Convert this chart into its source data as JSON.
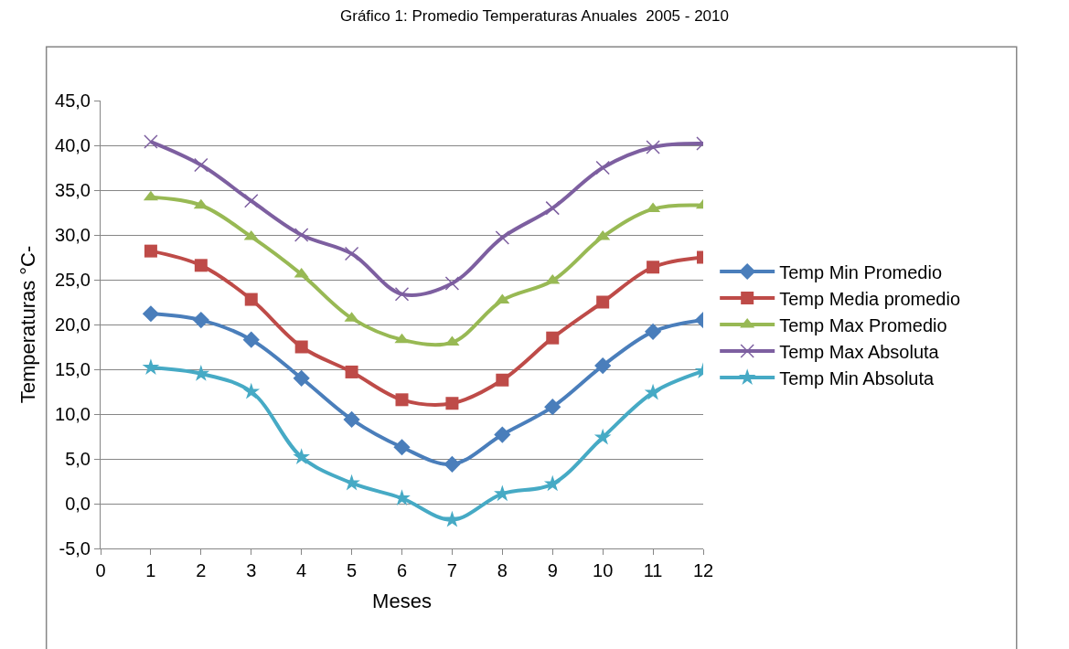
{
  "chart_data": {
    "type": "line",
    "title": "Gráfico 1: Promedio Temperaturas Anuales  2005 - 2010",
    "xlabel": "Meses",
    "ylabel": "Temperaturas °C-",
    "x": [
      1,
      2,
      3,
      4,
      5,
      6,
      7,
      8,
      9,
      10,
      11,
      12
    ],
    "xlim": [
      0,
      12
    ],
    "xticks": [
      0,
      1,
      2,
      3,
      4,
      5,
      6,
      7,
      8,
      9,
      10,
      11,
      12
    ],
    "ylim": [
      -5,
      45
    ],
    "yticks": [
      {
        "value": -5,
        "label": "-5,0"
      },
      {
        "value": 0,
        "label": "0,0"
      },
      {
        "value": 5,
        "label": "5,0"
      },
      {
        "value": 10,
        "label": "10,0"
      },
      {
        "value": 15,
        "label": "15,0"
      },
      {
        "value": 20,
        "label": "20,0"
      },
      {
        "value": 25,
        "label": "25,0"
      },
      {
        "value": 30,
        "label": "30,0"
      },
      {
        "value": 35,
        "label": "35,0"
      },
      {
        "value": 40,
        "label": "40,0"
      },
      {
        "value": 45,
        "label": "45,0"
      }
    ],
    "grid": "y",
    "legend": "right",
    "line_style": "solid",
    "series": [
      {
        "name": "Temp Min Promedio",
        "color": "#4a7ebb",
        "marker": "diamond",
        "values": [
          21.2,
          20.5,
          18.3,
          14.0,
          9.4,
          6.3,
          4.4,
          7.7,
          10.8,
          15.4,
          19.2,
          20.5
        ]
      },
      {
        "name": "Temp Media promedio",
        "color": "#be4b48",
        "marker": "square",
        "values": [
          28.2,
          26.6,
          22.8,
          17.5,
          14.7,
          11.6,
          11.2,
          13.8,
          18.5,
          22.5,
          26.4,
          27.5
        ]
      },
      {
        "name": "Temp Max Promedio",
        "color": "#98b954",
        "marker": "triangle",
        "values": [
          34.2,
          33.3,
          29.8,
          25.6,
          20.7,
          18.3,
          18.0,
          22.7,
          24.9,
          29.8,
          32.9,
          33.3
        ]
      },
      {
        "name": "Temp Max Absoluta",
        "color": "#7d5fa0",
        "marker": "cross",
        "values": [
          40.4,
          37.8,
          33.8,
          30.0,
          27.9,
          23.4,
          24.6,
          29.7,
          33.0,
          37.5,
          39.8,
          40.2
        ]
      },
      {
        "name": "Temp Min Absoluta",
        "color": "#46aac5",
        "marker": "star",
        "values": [
          15.2,
          14.5,
          12.5,
          5.2,
          2.3,
          0.6,
          -1.8,
          1.1,
          2.2,
          7.4,
          12.4,
          14.8
        ]
      }
    ]
  }
}
